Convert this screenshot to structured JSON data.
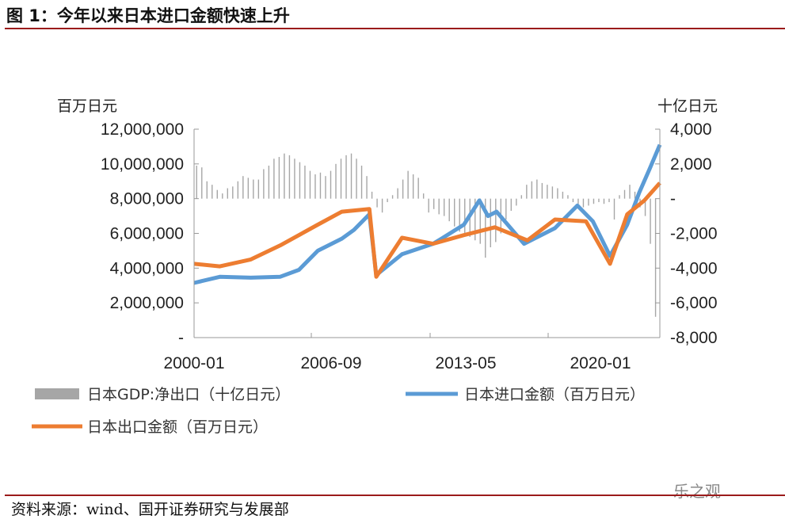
{
  "title": "图 1：今年以来日本进口金额快速上升",
  "source": "资料来源：wind、国开证券研究与发展部",
  "watermark": "乐之观",
  "chart_data": {
    "type": "line",
    "title": "图 1：今年以来日本进口金额快速上升",
    "left_axis": {
      "unit_label": "百万日元",
      "range": [
        0,
        12000000
      ],
      "tick_labels": [
        "-",
        "2,000,000",
        "4,000,000",
        "6,000,000",
        "8,000,000",
        "10,000,000",
        "12,000,000"
      ]
    },
    "right_axis": {
      "unit_label": "十亿日元",
      "range": [
        -8000,
        4000
      ],
      "tick_labels": [
        "-8,000",
        "-6,000",
        "-4,000",
        "-2,000",
        "-",
        "2,000",
        "4,000"
      ]
    },
    "x_axis": {
      "range": [
        "2000-01",
        "2022-08"
      ],
      "tick_labels": [
        "2000-01",
        "2006-09",
        "2013-05",
        "2020-01"
      ]
    },
    "grid": false,
    "legend_placement": "bottom",
    "series": [
      {
        "name": "日本GDP:净出口（十亿日元）",
        "type": "bar",
        "axis": "right",
        "color": "#a6a6a6",
        "x_start": "2000-Q1",
        "frequency": "quarterly",
        "values": [
          1900,
          1800,
          1000,
          800,
          500,
          300,
          600,
          700,
          1000,
          1300,
          1200,
          1100,
          1100,
          1700,
          1900,
          2300,
          2400,
          2600,
          2500,
          2300,
          2100,
          1900,
          1600,
          1400,
          1500,
          1300,
          1600,
          2000,
          2300,
          2500,
          2600,
          2300,
          1900,
          1300,
          400,
          -500,
          -800,
          -200,
          200,
          600,
          1100,
          1600,
          1400,
          1200,
          300,
          -800,
          -600,
          -900,
          -1000,
          -1300,
          -1600,
          -1900,
          -2000,
          -2200,
          -2400,
          -2600,
          -3400,
          -2800,
          -2500,
          -2000,
          -1200,
          -700,
          -400,
          200,
          800,
          1000,
          1100,
          900,
          800,
          700,
          600,
          400,
          200,
          -200,
          -300,
          -500,
          -400,
          -300,
          -200,
          -300,
          -200,
          -1200,
          200,
          500,
          800,
          400,
          -500,
          -1000,
          -2600,
          -6800
        ]
      },
      {
        "name": "日本进口金额（百万日元）",
        "type": "line",
        "axis": "left",
        "color": "#5b9bd5",
        "points": [
          [
            "2000-01",
            3150000
          ],
          [
            "2001-04",
            3500000
          ],
          [
            "2002-10",
            3450000
          ],
          [
            "2004-03",
            3500000
          ],
          [
            "2005-02",
            3900000
          ],
          [
            "2006-01",
            5000000
          ],
          [
            "2007-03",
            5700000
          ],
          [
            "2007-10",
            6200000
          ],
          [
            "2008-07",
            7100000
          ],
          [
            "2008-11",
            3600000
          ],
          [
            "2010-02",
            4800000
          ],
          [
            "2011-08",
            5400000
          ],
          [
            "2012-01",
            5700000
          ],
          [
            "2013-02",
            6500000
          ],
          [
            "2013-11",
            7900000
          ],
          [
            "2014-04",
            7000000
          ],
          [
            "2014-09",
            7250000
          ],
          [
            "2016-01",
            5400000
          ],
          [
            "2017-07",
            6300000
          ],
          [
            "2018-08",
            7600000
          ],
          [
            "2019-05",
            6700000
          ],
          [
            "2020-03",
            4700000
          ],
          [
            "2021-01",
            6500000
          ],
          [
            "2021-08",
            8350000
          ],
          [
            "2022-02",
            9700000
          ],
          [
            "2022-08",
            11100000
          ]
        ]
      },
      {
        "name": "日本出口金额（百万日元）",
        "type": "line",
        "axis": "left",
        "color": "#ed7d31",
        "points": [
          [
            "2000-01",
            4250000
          ],
          [
            "2001-04",
            4100000
          ],
          [
            "2002-10",
            4500000
          ],
          [
            "2004-03",
            5300000
          ],
          [
            "2006-01",
            6500000
          ],
          [
            "2007-03",
            7250000
          ],
          [
            "2008-07",
            7400000
          ],
          [
            "2008-11",
            3500000
          ],
          [
            "2010-02",
            5750000
          ],
          [
            "2011-08",
            5400000
          ],
          [
            "2013-02",
            5900000
          ],
          [
            "2014-08",
            6350000
          ],
          [
            "2016-03",
            5600000
          ],
          [
            "2017-07",
            6800000
          ],
          [
            "2019-01",
            6700000
          ],
          [
            "2020-03",
            4250000
          ],
          [
            "2021-01",
            7100000
          ],
          [
            "2021-11",
            7900000
          ],
          [
            "2022-08",
            8900000
          ]
        ]
      }
    ]
  }
}
